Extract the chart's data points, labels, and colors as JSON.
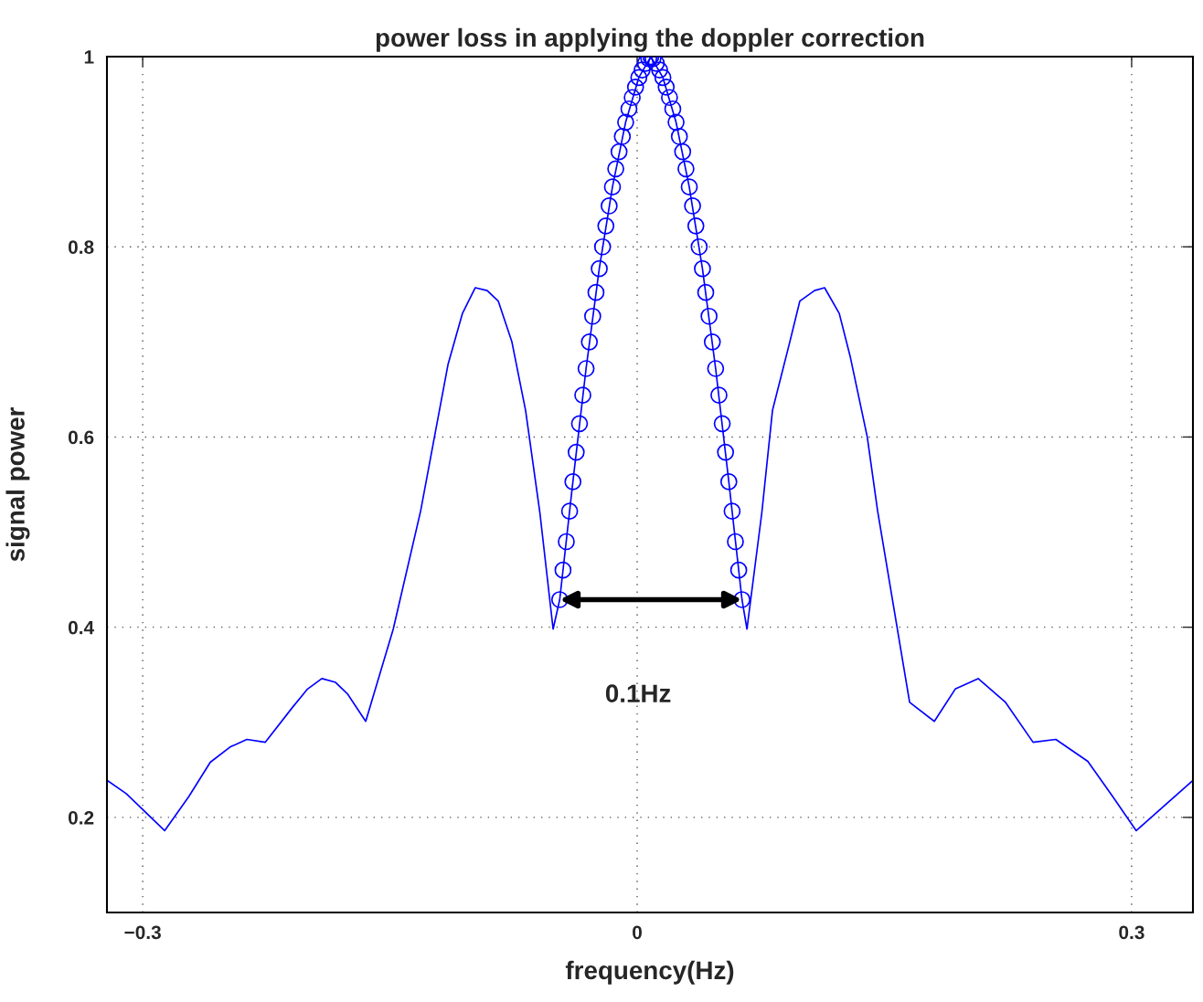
{
  "chart_data": {
    "type": "line",
    "title": "power loss in applying the doppler correction",
    "xlabel": "frequency(Hz)",
    "ylabel": "signal power",
    "xlim": [
      -0.3217,
      0.3372
    ],
    "ylim": [
      0.1,
      1
    ],
    "xticks": [
      {
        "value": -0.3,
        "label": "−0.3"
      },
      0,
      0.3
    ],
    "yticks": [
      0.2,
      0.4,
      0.6,
      0.8,
      1
    ],
    "grid": true,
    "legend": false,
    "series": [
      {
        "color": "#0000ff",
        "marker": "none",
        "line_style": "solid",
        "x": [
          -0.3217,
          -0.31,
          -0.2867,
          -0.272,
          -0.259,
          -0.247,
          -0.2368,
          -0.2257,
          -0.209,
          -0.2,
          -0.1913,
          -0.183,
          -0.1758,
          -0.1647,
          -0.148,
          -0.1314,
          -0.123,
          -0.1148,
          -0.106,
          -0.0982,
          -0.091,
          -0.0843,
          -0.076,
          -0.0677,
          -0.059,
          -0.051,
          -0.047,
          -0.039,
          -0.031,
          -0.023,
          -0.015,
          -0.007,
          0.001,
          0.0083,
          0.0156,
          0.0236,
          0.0316,
          0.0396,
          0.0476,
          0.0556,
          0.0636,
          0.0666,
          0.0756,
          0.0821,
          0.0926,
          0.0987,
          0.1076,
          0.1137,
          0.1226,
          0.1292,
          0.1396,
          0.1459,
          0.1653,
          0.1803,
          0.193,
          0.2069,
          0.2235,
          0.2402,
          0.254,
          0.2734,
          0.2885,
          0.3028,
          0.3372
        ],
        "values": [
          0.239,
          0.225,
          0.186,
          0.222,
          0.258,
          0.274,
          0.282,
          0.279,
          0.316,
          0.335,
          0.346,
          0.342,
          0.33,
          0.301,
          0.398,
          0.522,
          0.6,
          0.676,
          0.73,
          0.757,
          0.754,
          0.743,
          0.7,
          0.628,
          0.52,
          0.398,
          0.429,
          0.553,
          0.672,
          0.777,
          0.863,
          0.931,
          0.978,
          1.0,
          0.978,
          0.931,
          0.863,
          0.777,
          0.672,
          0.553,
          0.429,
          0.398,
          0.52,
          0.628,
          0.7,
          0.743,
          0.754,
          0.757,
          0.73,
          0.685,
          0.6,
          0.522,
          0.321,
          0.301,
          0.335,
          0.346,
          0.321,
          0.279,
          0.282,
          0.259,
          0.222,
          0.186,
          0.239
        ]
      },
      {
        "type": "scatter",
        "color": "#0000ff",
        "marker": "circle",
        "x": [
          -0.047,
          -0.045,
          -0.043,
          -0.041,
          -0.039,
          -0.037,
          -0.035,
          -0.033,
          -0.031,
          -0.029,
          -0.027,
          -0.025,
          -0.023,
          -0.021,
          -0.019,
          -0.017,
          -0.015,
          -0.013,
          -0.011,
          -0.009,
          -0.007,
          -0.005,
          -0.003,
          -0.001,
          0.001,
          0.003,
          0.005,
          0.007,
          0.0083,
          0.0096,
          0.0116,
          0.0136,
          0.0156,
          0.0176,
          0.0196,
          0.0216,
          0.0236,
          0.0256,
          0.0276,
          0.0296,
          0.0316,
          0.0336,
          0.0356,
          0.0376,
          0.0396,
          0.0416,
          0.0436,
          0.0456,
          0.0476,
          0.0496,
          0.0516,
          0.0536,
          0.0556,
          0.0576,
          0.0596,
          0.0616,
          0.0636
        ],
        "values": [
          0.429,
          0.46,
          0.49,
          0.522,
          0.553,
          0.584,
          0.614,
          0.644,
          0.672,
          0.7,
          0.727,
          0.752,
          0.777,
          0.8,
          0.822,
          0.843,
          0.863,
          0.882,
          0.9,
          0.916,
          0.931,
          0.945,
          0.957,
          0.968,
          0.978,
          0.986,
          0.993,
          0.998,
          1.0,
          0.998,
          0.993,
          0.986,
          0.978,
          0.968,
          0.957,
          0.945,
          0.931,
          0.916,
          0.9,
          0.882,
          0.863,
          0.843,
          0.822,
          0.8,
          0.777,
          0.752,
          0.727,
          0.7,
          0.672,
          0.644,
          0.614,
          0.584,
          0.553,
          0.522,
          0.49,
          0.46,
          0.429
        ]
      }
    ],
    "annotations": [
      "0.1Hz"
    ]
  }
}
